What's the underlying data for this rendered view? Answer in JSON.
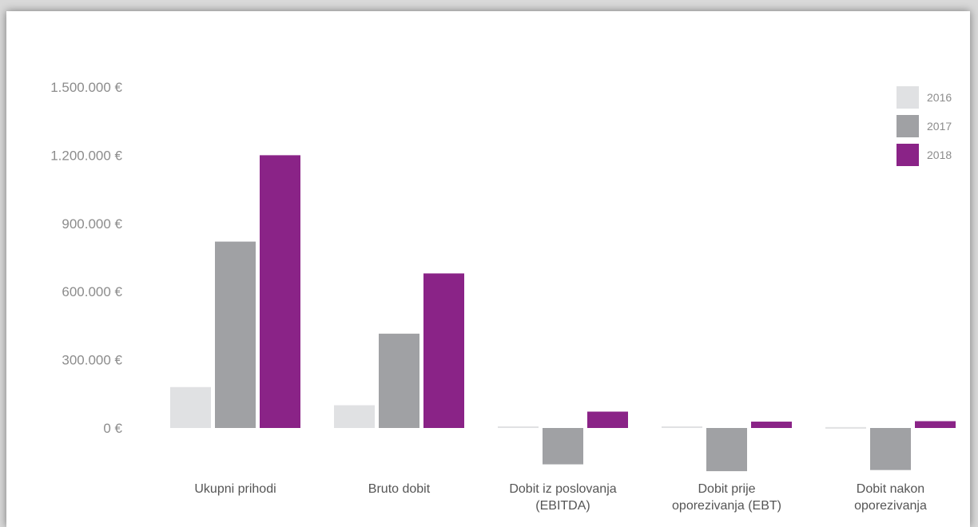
{
  "chart_data": {
    "type": "bar",
    "title": "",
    "xlabel": "",
    "ylabel": "",
    "ylim": [
      -180000,
      1500000
    ],
    "yticks": [
      0,
      300000,
      600000,
      900000,
      1200000,
      1500000
    ],
    "ytick_labels": [
      "0 €",
      "300.000 €",
      "600.000 €",
      "900.000 €",
      "1.200.000 €",
      "1.500.000 €"
    ],
    "categories": [
      [
        "Ukupni prihodi"
      ],
      [
        "Bruto dobit"
      ],
      [
        "Dobit iz poslovanja",
        "(EBITDA)"
      ],
      [
        "Dobit prije",
        "oporezivanja (EBT)"
      ],
      [
        "Dobit nakon",
        "oporezivanja"
      ]
    ],
    "series": [
      {
        "name": "2016",
        "color": "#e0e1e3",
        "values": [
          180000,
          100000,
          7000,
          7000,
          4000
        ]
      },
      {
        "name": "2017",
        "color": "#a0a1a4",
        "values": [
          820000,
          415000,
          -160000,
          -190000,
          -185000
        ]
      },
      {
        "name": "2018",
        "color": "#8a2387",
        "values": [
          1200000,
          680000,
          72000,
          28000,
          30000
        ]
      }
    ],
    "legend_position": "top-right",
    "grid": false
  }
}
